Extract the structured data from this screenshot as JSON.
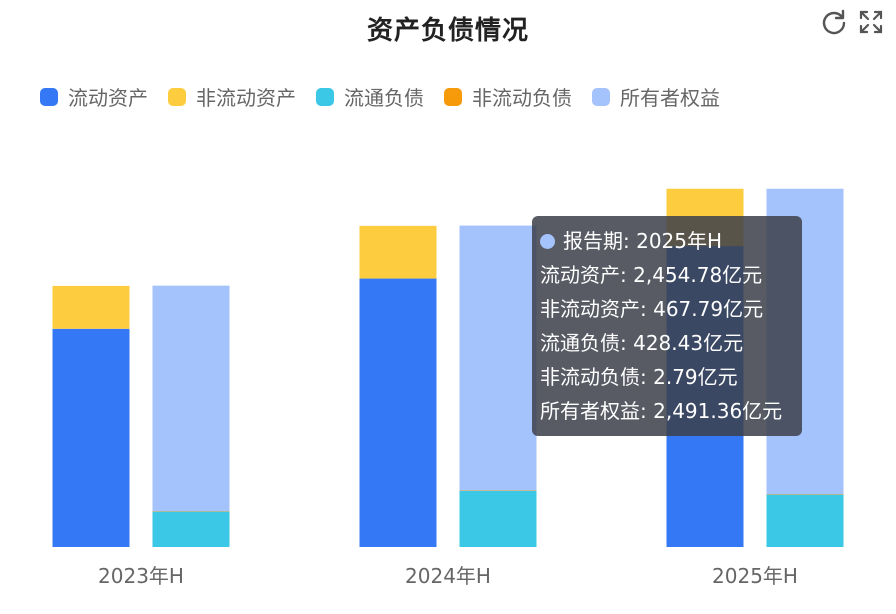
{
  "toolbar": {
    "refresh_icon": "refresh-icon",
    "fullscreen_icon": "fullscreen-icon"
  },
  "colors": {
    "current_assets": "#3478f6",
    "noncurrent_assets": "#fecd3f",
    "current_liabilities": "#3bc8e6",
    "noncurrent_liabilities": "#f79a09",
    "equity": "#a4c2fb"
  },
  "chart_data": {
    "type": "bar",
    "title": "资产负债情况",
    "categories": [
      "2023年H",
      "2024年H",
      "2025年H"
    ],
    "stacks": [
      {
        "stack": "assets",
        "series": [
          "流动资产",
          "非流动资产"
        ]
      },
      {
        "stack": "liabilities_equity",
        "series": [
          "流通负债",
          "非流动负债",
          "所有者权益"
        ]
      }
    ],
    "series": [
      {
        "name": "流动资产",
        "stack": "assets",
        "values": [
          1780,
          2190,
          2454.78
        ]
      },
      {
        "name": "非流动资产",
        "stack": "assets",
        "values": [
          350,
          430,
          467.79
        ]
      },
      {
        "name": "流通负债",
        "stack": "liabilities_equity",
        "values": [
          290,
          460,
          428.43
        ]
      },
      {
        "name": "非流动负债",
        "stack": "liabilities_equity",
        "values": [
          2,
          2,
          2.79
        ]
      },
      {
        "name": "所有者权益",
        "stack": "liabilities_equity",
        "values": [
          1840,
          2160,
          2491.36
        ]
      }
    ],
    "ylim": [
      0,
      3100
    ],
    "grid": false,
    "legend": "top-left",
    "tooltip": {
      "header_label": "报告期",
      "category": "2025年H",
      "unit": "亿元",
      "rows": [
        {
          "label": "流动资产",
          "value": "2,454.78"
        },
        {
          "label": "非流动资产",
          "value": "467.79"
        },
        {
          "label": "流通负债",
          "value": "428.43"
        },
        {
          "label": "非流动负债",
          "value": "2.79"
        },
        {
          "label": "所有者权益",
          "value": "2,491.36"
        }
      ]
    }
  }
}
